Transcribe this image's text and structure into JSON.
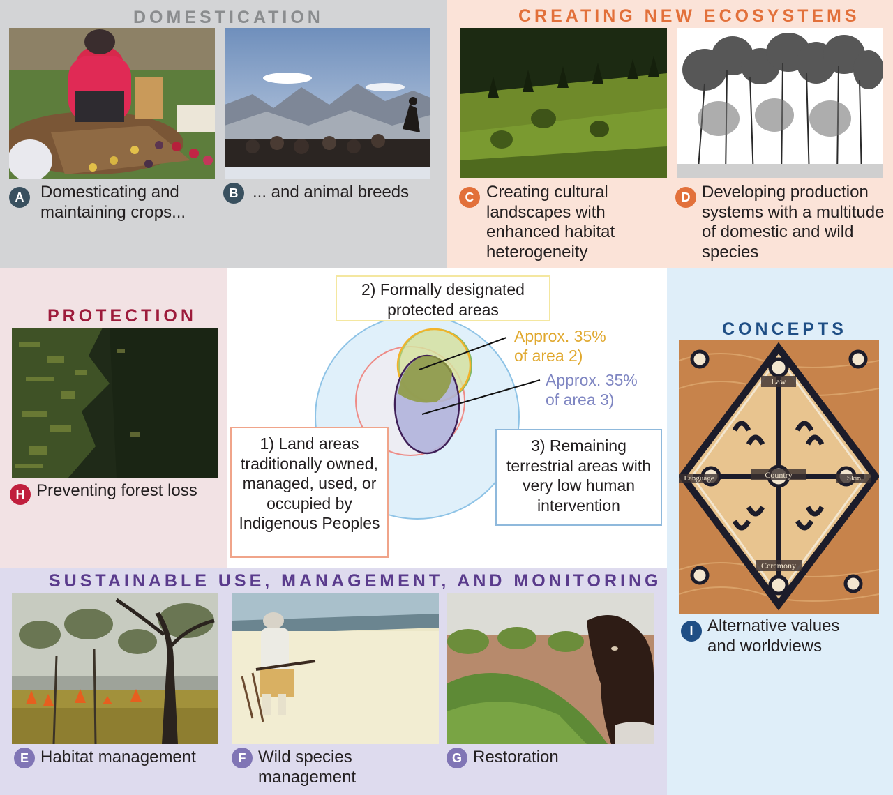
{
  "sections": {
    "domestication": "DOMESTICATION",
    "ecosystems": "CREATING NEW ECOSYSTEMS",
    "protection": "PROTECTION",
    "concepts": "CONCEPTS",
    "sustainable": "SUSTAINABLE USE, MANAGEMENT, AND MONITORING"
  },
  "items": {
    "A": {
      "letter": "A",
      "line1": "Domesticating and",
      "line2": "maintaining crops..."
    },
    "B": {
      "letter": "B",
      "line1": "... and animal breeds"
    },
    "C": {
      "letter": "C",
      "line1": "Creating cultural",
      "line2": "landscapes with",
      "line3": "enhanced habitat",
      "line4": "heterogeneity"
    },
    "D": {
      "letter": "D",
      "line1": "Developing production",
      "line2": "systems with a multitude",
      "line3": "of domestic and wild",
      "line4": "species"
    },
    "E": {
      "letter": "E",
      "line1": "Habitat management"
    },
    "F": {
      "letter": "F",
      "line1": "Wild species",
      "line2": "management"
    },
    "G": {
      "letter": "G",
      "line1": "Restoration"
    },
    "H": {
      "letter": "H",
      "line1": "Preventing forest loss"
    },
    "I": {
      "letter": "I",
      "line1": "Alternative values",
      "line2": "and worldviews"
    }
  },
  "painting_labels": {
    "top": "Law",
    "center": "Country",
    "left": "Language",
    "right": "Skin",
    "bottom": "Ceremony"
  },
  "venn": {
    "box1": {
      "line1": "1) Land areas",
      "line2": "traditionally owned,",
      "line3": "managed, used, or",
      "line4": "occupied by",
      "line5": "Indigenous Peoples"
    },
    "box2": {
      "line1": "2) Formally designated",
      "line2": "protected areas"
    },
    "box3": {
      "line1": "3) Remaining",
      "line2": "terrestrial areas with",
      "line3": "very low human",
      "line4": "intervention"
    },
    "approx2": {
      "line1": "Approx.  35%",
      "line2": "of area 2)"
    },
    "approx3": {
      "line1": "Approx. 35%",
      "line2": "of area 3)"
    }
  },
  "colors": {
    "domestication": "#8a8c8e",
    "ecosystems": "#e2703a",
    "protection": "#9d1b3b",
    "concepts": "#1f4e85",
    "sustainable": "#5a3b8c",
    "badge_ab": "#39505f",
    "badge_cd": "#e2703a",
    "badge_efg": "#8075b5",
    "badge_h": "#c01f3d",
    "badge_i": "#1f4e85",
    "approx2": "#e0a82e",
    "approx3": "#7f86c2"
  }
}
